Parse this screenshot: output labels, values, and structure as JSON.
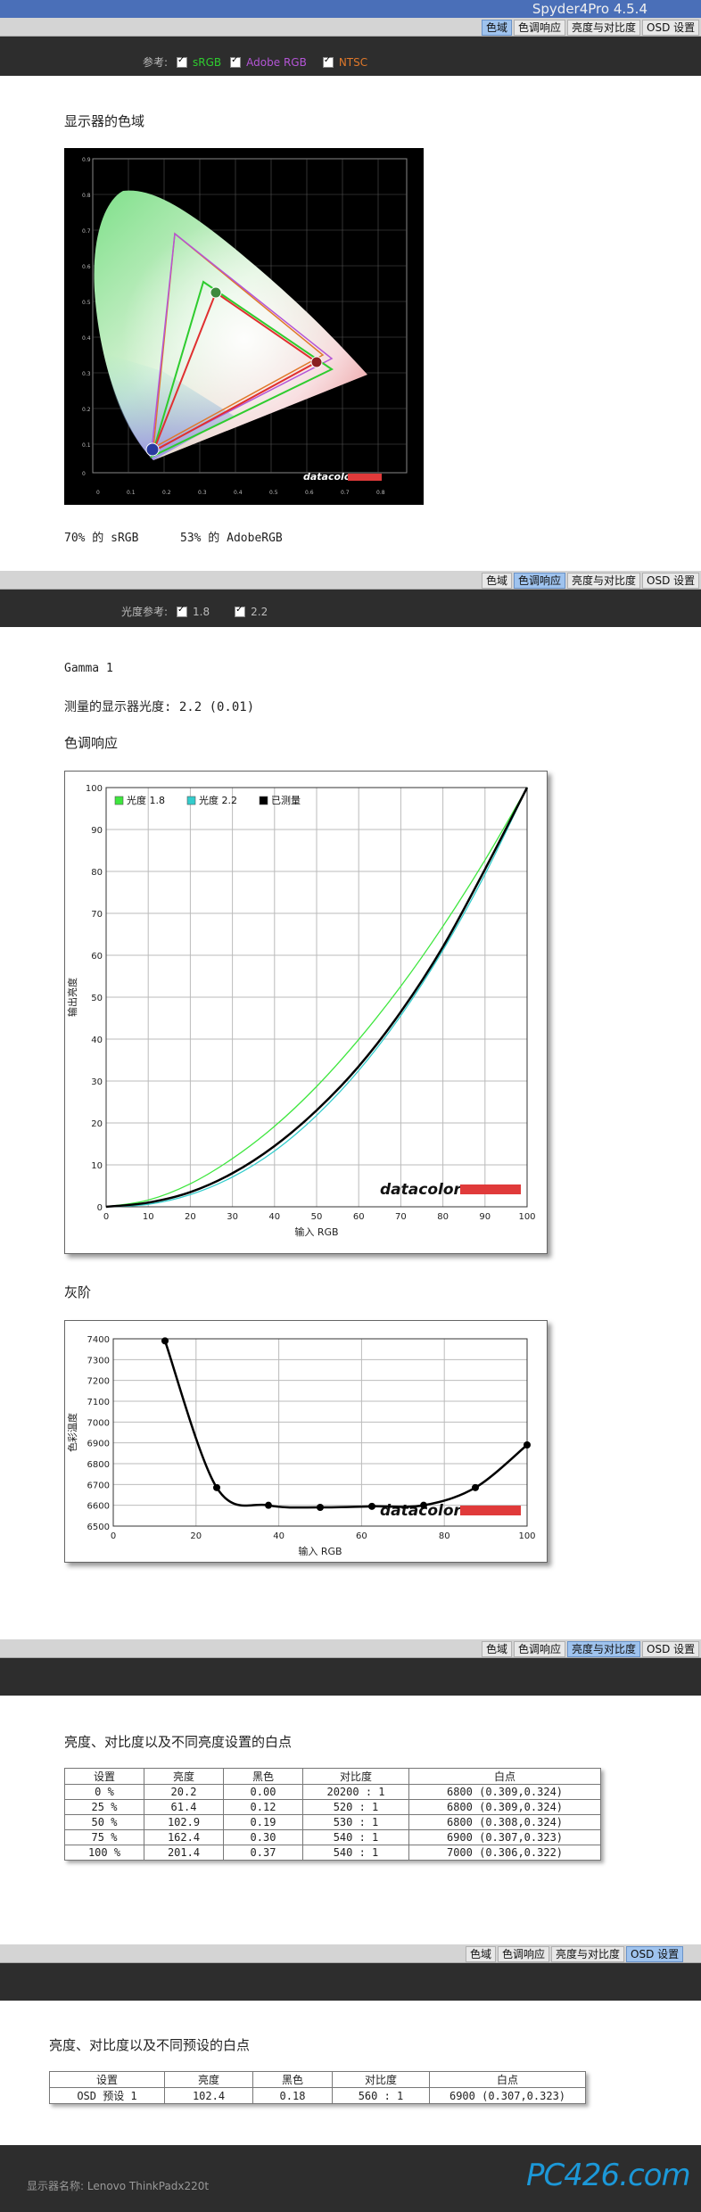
{
  "app": {
    "title": "Spyder4Pro 4.5.4"
  },
  "tabs": [
    "色域",
    "色调响应",
    "亮度与对比度",
    "OSD 设置"
  ],
  "gamut": {
    "ref_label": "参考:",
    "refs": [
      {
        "label": "sRGB",
        "color": "#2ecc2e"
      },
      {
        "label": "Adobe RGB",
        "color": "#b455d6"
      },
      {
        "label": "NTSC",
        "color": "#e0782a"
      }
    ],
    "title": "显示器的色域",
    "x_ticks": [
      "0",
      "0.1",
      "0.2",
      "0.3",
      "0.4",
      "0.5",
      "0.6",
      "0.7",
      "0.8"
    ],
    "y_ticks": [
      "0.9",
      "0.8",
      "0.7",
      "0.6",
      "0.5",
      "0.4",
      "0.3",
      "0.2",
      "0.1",
      "0"
    ],
    "logo": "datacolor",
    "coverage_srgb": "70% 的 sRGB",
    "coverage_adobe": "53% 的 AdobeRGB"
  },
  "tone": {
    "ref_label": "光度参考:",
    "refs": [
      "1.8",
      "2.2"
    ],
    "gamma_line": "Gamma 1",
    "measured_label": "测量的显示器光度:  2.2 (0.01)",
    "response_title": "色调响应",
    "grey_title": "灰阶",
    "logo": "datacolor"
  },
  "chart_data": [
    {
      "type": "line",
      "title": "色调响应",
      "xlabel": "输入 RGB",
      "ylabel": "输出亮度",
      "xlim": [
        0,
        100
      ],
      "ylim": [
        0,
        100
      ],
      "x_ticks": [
        "0",
        "10",
        "20",
        "30",
        "40",
        "50",
        "60",
        "70",
        "80",
        "90",
        "100"
      ],
      "y_ticks": [
        "0",
        "10",
        "20",
        "30",
        "40",
        "50",
        "60",
        "70",
        "80",
        "90",
        "100"
      ],
      "legend_position": "top-left",
      "series": [
        {
          "name": "光度 1.8",
          "color": "#3ee63e",
          "x": [
            0,
            10,
            20,
            30,
            40,
            50,
            60,
            70,
            80,
            90,
            100
          ],
          "y": [
            0,
            1.6,
            5.5,
            11.5,
            19.2,
            28.7,
            39.9,
            52.6,
            66.9,
            82.7,
            100
          ]
        },
        {
          "name": "光度 2.2",
          "color": "#33cccc",
          "x": [
            0,
            10,
            20,
            30,
            40,
            50,
            60,
            70,
            80,
            90,
            100
          ],
          "y": [
            0,
            0.6,
            2.9,
            7.1,
            13.3,
            21.8,
            32.5,
            45.6,
            61.2,
            79.3,
            100
          ]
        },
        {
          "name": "已测量",
          "color": "#000000",
          "x": [
            0,
            10,
            20,
            30,
            40,
            50,
            60,
            70,
            80,
            90,
            100
          ],
          "y": [
            0,
            1.0,
            3.5,
            8.0,
            14.5,
            23.0,
            33.5,
            46.5,
            62.0,
            80.5,
            100
          ]
        }
      ]
    },
    {
      "type": "line",
      "title": "灰阶",
      "xlabel": "输入 RGB",
      "ylabel": "色彩温度",
      "xlim": [
        0,
        100
      ],
      "ylim": [
        6500,
        7400
      ],
      "x_ticks": [
        "0",
        "20",
        "40",
        "60",
        "80",
        "100"
      ],
      "y_ticks": [
        "7400",
        "7300",
        "7200",
        "7100",
        "7000",
        "6900",
        "6800",
        "6700",
        "6600",
        "6500"
      ],
      "series": [
        {
          "name": "",
          "color": "#000000",
          "x": [
            12.5,
            25,
            37.5,
            50,
            62.5,
            75,
            87.5,
            100
          ],
          "y": [
            7390,
            6685,
            6600,
            6590,
            6595,
            6600,
            6685,
            6890
          ]
        }
      ]
    }
  ],
  "brightness": {
    "title": "亮度、对比度以及不同亮度设置的白点",
    "headers": [
      "设置",
      "亮度",
      "黑色",
      "对比度",
      "白点"
    ],
    "rows": [
      [
        "0 %",
        "20.2",
        "0.00",
        "20200 : 1",
        "6800 (0.309,0.324)"
      ],
      [
        "25 %",
        "61.4",
        "0.12",
        "520 : 1",
        "6800 (0.309,0.324)"
      ],
      [
        "50 %",
        "102.9",
        "0.19",
        "530 : 1",
        "6800 (0.308,0.324)"
      ],
      [
        "75 %",
        "162.4",
        "0.30",
        "540 : 1",
        "6900 (0.307,0.323)"
      ],
      [
        "100 %",
        "201.4",
        "0.37",
        "540 : 1",
        "7000 (0.306,0.322)"
      ]
    ]
  },
  "osd": {
    "title": "亮度、对比度以及不同预设的白点",
    "headers": [
      "设置",
      "亮度",
      "黑色",
      "对比度",
      "白点"
    ],
    "rows": [
      [
        "OSD 预设 1",
        "102.4",
        "0.18",
        "560 : 1",
        "6900 (0.307,0.323)"
      ]
    ]
  },
  "footer": {
    "display_name": "显示器名称: Lenovo ThinkPadx220t",
    "brand": "PC426.com"
  }
}
